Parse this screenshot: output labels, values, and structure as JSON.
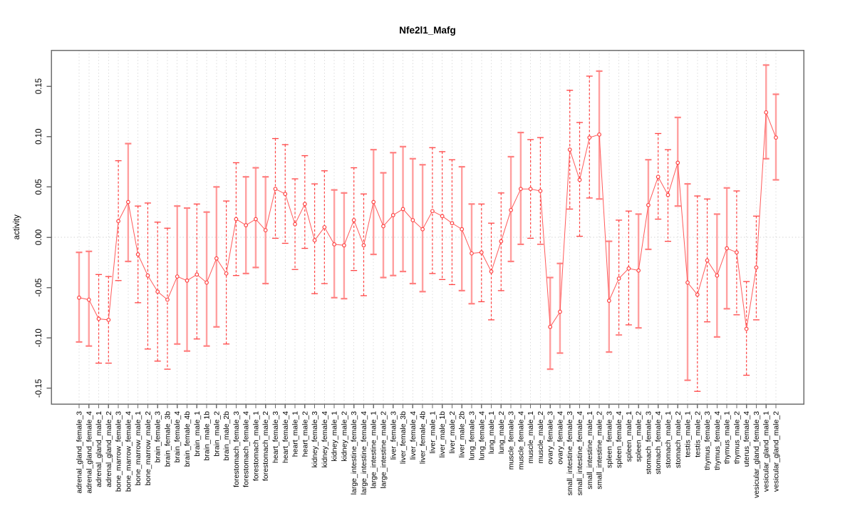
{
  "chart_data": {
    "type": "scatter",
    "title": "Nfe2l1_Mafg",
    "xlabel": "",
    "ylabel": "activity",
    "ylim": [
      -0.176,
      0.176
    ],
    "ytick_values": [
      0.15,
      0.1,
      0.05,
      0.0,
      -0.05,
      -0.1,
      -0.15
    ],
    "ytick_labels": [
      "0.15",
      "0.10",
      "0.05",
      "0.00",
      "-0.05",
      "-0.10",
      "-0.15"
    ],
    "grid": "vertical dotted gridline per category; dotted horizontal line at y=0",
    "legend": "none",
    "marker": "open-circle",
    "categories": [
      "adrenal_gland_female_3",
      "adrenal_gland_female_4",
      "adrenal_gland_male_1",
      "adrenal_gland_male_2",
      "bone_marrow_female_3",
      "bone_marrow_female_4",
      "bone_marrow_male_1",
      "bone_marrow_male_2",
      "brain_female_3",
      "brain_female_3b",
      "brain_female_4",
      "brain_female_4b",
      "brain_male_1",
      "brain_male_1b",
      "brain_male_2",
      "brain_male_2b",
      "forestomach_female_3",
      "forestomach_female_4",
      "forestomach_male_1",
      "forestomach_male_2",
      "heart_female_3",
      "heart_female_4",
      "heart_male_1",
      "heart_male_2",
      "kidney_female_3",
      "kidney_female_4",
      "kidney_male_1",
      "kidney_male_2",
      "large_intestine_female_3",
      "large_intestine_female_4",
      "large_intestine_male_1",
      "large_intestine_male_2",
      "liver_female_3",
      "liver_female_3b",
      "liver_female_4",
      "liver_female_4b",
      "liver_male_1",
      "liver_male_1b",
      "liver_male_2",
      "liver_male_2b",
      "lung_female_3",
      "lung_female_4",
      "lung_male_1",
      "lung_male_2",
      "muscle_female_3",
      "muscle_female_4",
      "muscle_male_1",
      "muscle_male_2",
      "ovary_female_3",
      "ovary_female_4",
      "small_intestine_female_3",
      "small_intestine_female_4",
      "small_intestine_male_1",
      "small_intestine_male_2",
      "spleen_female_3",
      "spleen_female_4",
      "spleen_male_1",
      "spleen_male_2",
      "stomach_female_3",
      "stomach_female_4",
      "stomach_male_1",
      "stomach_male_2",
      "testis_male_1",
      "testis_male_2",
      "thymus_female_3",
      "thymus_female_4",
      "thymus_male_1",
      "thymus_male_2",
      "uterus_female_4",
      "vesicular_gland_female_3",
      "vesicular_gland_male_1",
      "vesicular_gland_male_2"
    ],
    "series": [
      {
        "name": "activity",
        "values": [
          -0.06,
          -0.062,
          -0.081,
          -0.082,
          0.016,
          0.035,
          -0.017,
          -0.038,
          -0.054,
          -0.062,
          -0.039,
          -0.043,
          -0.037,
          -0.045,
          -0.021,
          -0.036,
          0.018,
          0.012,
          0.018,
          0.007,
          0.048,
          0.043,
          0.013,
          0.033,
          -0.003,
          0.01,
          -0.007,
          -0.008,
          0.017,
          -0.008,
          0.035,
          0.011,
          0.022,
          0.028,
          0.017,
          0.008,
          0.026,
          0.021,
          0.014,
          0.008,
          -0.016,
          -0.015,
          -0.034,
          -0.004,
          0.027,
          0.048,
          0.048,
          0.046,
          -0.089,
          -0.074,
          0.087,
          0.057,
          0.099,
          0.102,
          -0.063,
          -0.041,
          -0.031,
          -0.033,
          0.032,
          0.06,
          0.042,
          0.074,
          -0.045,
          -0.057,
          -0.023,
          -0.038,
          -0.011,
          -0.015,
          -0.091,
          -0.03,
          0.124,
          0.099
        ],
        "err_hi": [
          -0.015,
          -0.014,
          -0.037,
          -0.039,
          0.076,
          0.093,
          0.031,
          0.034,
          0.015,
          0.009,
          0.031,
          0.029,
          0.033,
          0.025,
          0.05,
          0.036,
          0.074,
          0.06,
          0.069,
          0.06,
          0.098,
          0.092,
          0.058,
          0.081,
          0.053,
          0.066,
          0.047,
          0.044,
          0.069,
          0.043,
          0.087,
          0.064,
          0.084,
          0.09,
          0.078,
          0.072,
          0.089,
          0.085,
          0.077,
          0.07,
          0.033,
          0.033,
          0.014,
          0.044,
          0.08,
          0.104,
          0.097,
          0.099,
          -0.04,
          -0.026,
          0.146,
          0.114,
          0.16,
          0.165,
          -0.004,
          0.017,
          0.026,
          0.023,
          0.077,
          0.103,
          0.087,
          0.119,
          0.053,
          0.041,
          0.038,
          0.023,
          0.049,
          0.046,
          -0.044,
          0.021,
          0.171,
          0.142
        ],
        "err_lo": [
          -0.104,
          -0.108,
          -0.125,
          -0.125,
          -0.043,
          -0.024,
          -0.065,
          -0.111,
          -0.123,
          -0.131,
          -0.106,
          -0.113,
          -0.101,
          -0.108,
          -0.089,
          -0.106,
          -0.038,
          -0.036,
          -0.03,
          -0.046,
          -0.001,
          -0.006,
          -0.032,
          -0.011,
          -0.056,
          -0.046,
          -0.06,
          -0.061,
          -0.033,
          -0.058,
          -0.017,
          -0.04,
          -0.038,
          -0.034,
          -0.046,
          -0.054,
          -0.036,
          -0.042,
          -0.047,
          -0.053,
          -0.066,
          -0.064,
          -0.082,
          -0.053,
          -0.024,
          -0.007,
          -0.001,
          -0.007,
          -0.131,
          -0.115,
          0.028,
          0.001,
          0.039,
          0.038,
          -0.114,
          -0.097,
          -0.087,
          -0.09,
          -0.012,
          0.018,
          -0.004,
          0.031,
          -0.142,
          -0.153,
          -0.084,
          -0.099,
          -0.071,
          -0.077,
          -0.137,
          -0.082,
          0.078,
          0.057
        ],
        "bar_styles": [
          "solid",
          "solid",
          "dashed",
          "dashed",
          "dashed",
          "solid",
          "dashed",
          "dashed",
          "dashed",
          "dashed",
          "solid",
          "solid",
          "dashed",
          "solid",
          "solid",
          "dashed",
          "dashed",
          "solid",
          "solid",
          "solid",
          "dashed",
          "dashed",
          "dashed",
          "dashed",
          "dashed",
          "dashed",
          "solid",
          "solid",
          "dashed",
          "dashed",
          "solid",
          "solid",
          "solid",
          "solid",
          "solid",
          "solid",
          "dashed",
          "dashed",
          "dashed",
          "solid",
          "solid",
          "dashed",
          "dashed",
          "dashed",
          "solid",
          "solid",
          "dashed",
          "dashed",
          "solid",
          "solid",
          "dashed",
          "dashed",
          "dashed",
          "solid",
          "solid",
          "dashed",
          "dashed",
          "solid",
          "solid",
          "dashed",
          "dashed",
          "solid",
          "solid",
          "dashed",
          "dashed",
          "solid",
          "solid",
          "dashed",
          "dashed",
          "dashed",
          "solid",
          "solid"
        ]
      }
    ],
    "colors": {
      "marker": "#ff4343",
      "series_line": "#ff5a5a",
      "errorbar_solid": "#ffa0a0",
      "errorbar_solid_cap": "#ff8080",
      "errorbar_dashed": "#ff4343",
      "grid": "#dcdcdc",
      "zero_line": "#d4d4d4",
      "frame": "#6e6e6e",
      "text": "#000000",
      "background": "#ffffff"
    }
  }
}
